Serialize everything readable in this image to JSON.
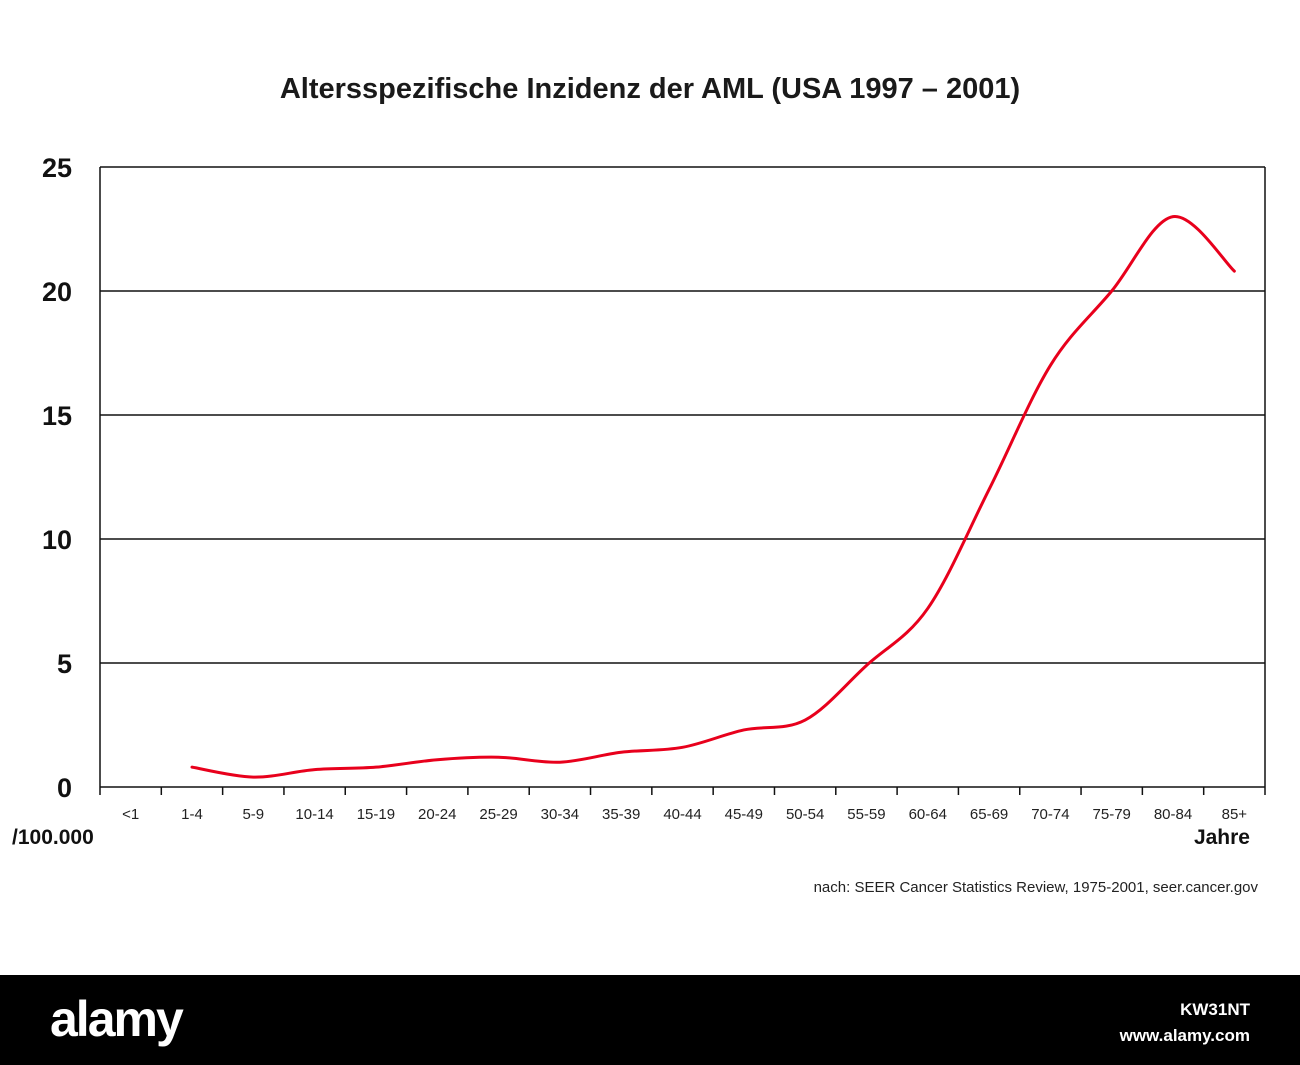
{
  "chart_data": {
    "type": "line",
    "title": "Altersspezifische Inzidenz der AML (USA 1997 – 2001)",
    "categories": [
      "<1",
      "1-4",
      "5-9",
      "10-14",
      "15-19",
      "20-24",
      "25-29",
      "30-34",
      "35-39",
      "40-44",
      "45-49",
      "50-54",
      "55-59",
      "60-64",
      "65-69",
      "70-74",
      "75-79",
      "80-84",
      "85+"
    ],
    "series": [
      {
        "values": [
          null,
          0.8,
          0.4,
          0.7,
          0.8,
          1.1,
          1.2,
          1.0,
          1.4,
          1.6,
          2.3,
          2.7,
          4.9,
          7.2,
          12.0,
          17.0,
          20.0,
          23.0,
          20.8
        ],
        "color": "#e8001c"
      }
    ],
    "ylim": [
      0,
      25
    ],
    "yticks": [
      "0",
      "5",
      "10",
      "15",
      "20",
      "25"
    ],
    "y_unit_label": "/100.000",
    "x_unit_label": "Jahre",
    "grid": "horizontal",
    "source_note": "nach: SEER Cancer Statistics Review, 1975-2001, seer.cancer.gov"
  },
  "watermark": {
    "logo_text": "alamy",
    "image_id": "KW31NT",
    "site": "www.alamy.com"
  }
}
